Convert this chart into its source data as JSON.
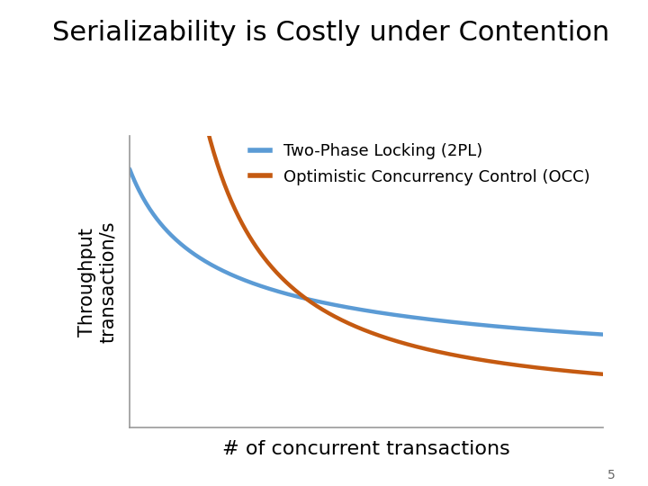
{
  "title": "Serializability is Costly under Contention",
  "title_fontsize": 22,
  "title_fontweight": "normal",
  "xlabel": "# of concurrent transactions",
  "xlabel_fontsize": 16,
  "ylabel_line1": "Throughput",
  "ylabel_line2": "transaction/s",
  "ylabel_fontsize": 15,
  "background_color": "#ffffff",
  "line_2pl_color": "#5B9BD5",
  "line_occ_color": "#C55A11",
  "line_width": 3.2,
  "legend_2pl": "Two-Phase Locking (2PL)",
  "legend_occ": "Optimistic Concurrency Control (OCC)",
  "legend_fontsize": 13,
  "page_number": "5",
  "axis_color": "#999999",
  "spine_linewidth": 1.2
}
